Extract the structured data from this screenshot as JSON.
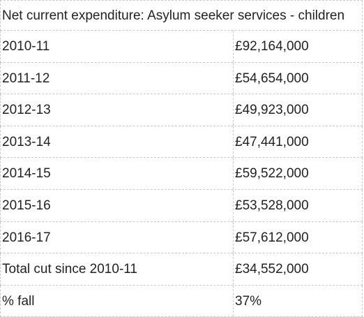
{
  "table": {
    "title": "Net current expenditure: Asylum seeker services - children",
    "rows": [
      {
        "label": "2010-11",
        "value": "£92,164,000"
      },
      {
        "label": "2011-12",
        "value": "£54,654,000"
      },
      {
        "label": "2012-13",
        "value": "£49,923,000"
      },
      {
        "label": "2013-14",
        "value": "£47,441,000"
      },
      {
        "label": "2014-15",
        "value": "£59,522,000"
      },
      {
        "label": "2015-16",
        "value": "£53,528,000"
      },
      {
        "label": "2016-17",
        "value": "£57,612,000"
      },
      {
        "label": "Total cut since 2010-11",
        "value": "£34,552,000"
      },
      {
        "label": "% fall",
        "value": "37%"
      }
    ]
  }
}
